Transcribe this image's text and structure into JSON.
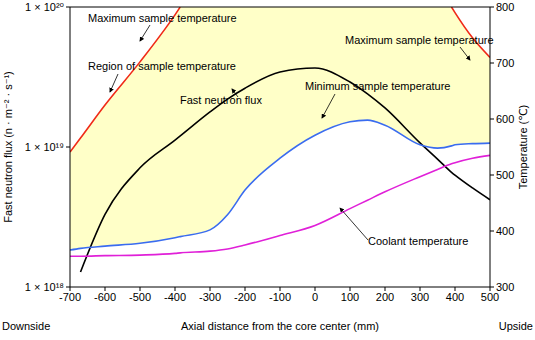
{
  "chart_data": {
    "type": "line",
    "xlabel": "Axial distance from the core center (mm)",
    "ylabel": "Fast neutron flux (n · m⁻² · s⁻¹)",
    "y2label": "Temperature (℃)",
    "x": [
      -700,
      -670,
      -600,
      -500,
      -400,
      -385,
      -300,
      -250,
      -200,
      -100,
      0,
      100,
      150,
      200,
      300,
      350,
      390,
      400,
      450,
      500
    ],
    "xlim": [
      -700,
      500
    ],
    "xticks": [
      -700,
      -600,
      -500,
      -400,
      -300,
      -200,
      -100,
      0,
      100,
      200,
      300,
      400,
      500
    ],
    "log": "y",
    "ylim": [
      1e+18,
      1e+20
    ],
    "yticks": [
      {
        "value": 1e+18,
        "label": "1 × 10¹⁸"
      },
      {
        "value": 1e+19,
        "label": "1 × 10¹⁹"
      },
      {
        "value": 1e+20,
        "label": "1 × 10²⁰"
      }
    ],
    "y2lim": [
      300,
      800
    ],
    "y2ticks": [
      300,
      400,
      500,
      600,
      700,
      800
    ],
    "grid": false,
    "series": [
      {
        "name": "Fast neutron flux",
        "color": "#000000",
        "values": [
          null,
          1.28e+18,
          3.3e+18,
          7.1e+18,
          1.12e+19,
          1.2e+19,
          1.78e+19,
          2.2e+19,
          2.63e+19,
          3.43e+19,
          3.67e+19,
          2.91e+19,
          2.4e+19,
          1.9e+19,
          1.07e+19,
          8.2e+18,
          6.6e+18,
          6.3e+18,
          5.1e+18,
          4.2e+18
        ]
      },
      {
        "name": "Maximum sample temperature",
        "axis": "y2",
        "color": "#f02a18",
        "values": [
          541,
          566,
          625,
          702,
          786,
          800,
          null,
          null,
          null,
          null,
          null,
          null,
          null,
          null,
          null,
          null,
          800,
          790,
          745,
          710
        ]
      },
      {
        "name": "Minimum sample temperature",
        "axis": "y2",
        "color": "#3a6cf0",
        "values": [
          366,
          369,
          373,
          378,
          388,
          390,
          402,
          429,
          473,
          530,
          571,
          595,
          598,
          589,
          554,
          548,
          552,
          554,
          556,
          557
        ]
      },
      {
        "name": "Coolant temperature",
        "axis": "y2",
        "color": "#e020d8",
        "values": [
          355,
          355,
          356,
          357,
          360,
          361,
          364,
          368,
          375,
          392,
          410,
          440,
          455,
          470,
          497,
          510,
          520,
          522,
          530,
          535
        ]
      }
    ],
    "annotations": [
      "Maximum sample temperature",
      "Region of sample temperature",
      "Fast neutron flux",
      "Minimum sample temperature",
      "Maximum sample temperature",
      "Coolant temperature",
      "Downside",
      "Upside"
    ]
  }
}
